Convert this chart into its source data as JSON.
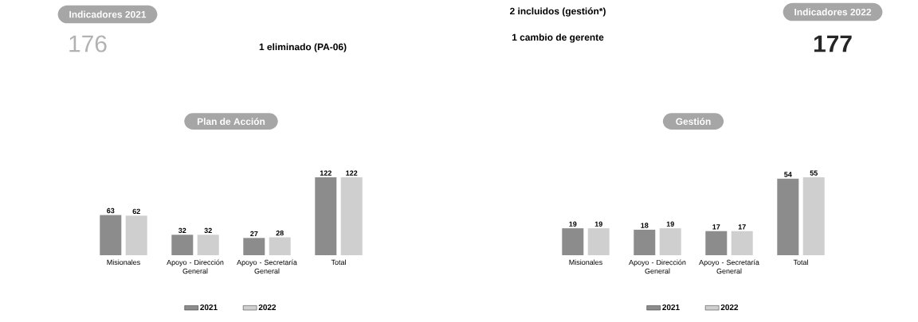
{
  "chart_data": [
    {
      "type": "other",
      "annotations": [
        "Indicadores 2021",
        "176",
        "1 eliminado (PA-06)",
        "2 incluidos (gestión*)",
        "1 cambio de gerente",
        "Indicadores 2022",
        "177"
      ]
    },
    {
      "type": "bar",
      "title": "Plan de Acción",
      "categories": [
        "Misionales",
        "Apoyo - Dirección General",
        "Apoyo - Secretaría General",
        "Total"
      ],
      "series": [
        {
          "name": "2021",
          "color": "#8c8c8c",
          "values": [
            63,
            32,
            27,
            122
          ]
        },
        {
          "name": "2022",
          "color": "#cfcfcf",
          "values": [
            62,
            32,
            28,
            122
          ]
        }
      ],
      "data_labels": true,
      "legend": "bottom"
    },
    {
      "type": "bar",
      "title": "Gestión",
      "categories": [
        "Misionales",
        "Apoyo - Dirección General",
        "Apoyo - Secretaría General",
        "Total"
      ],
      "series": [
        {
          "name": "2021",
          "color": "#8c8c8c",
          "values": [
            19,
            18,
            17,
            54
          ]
        },
        {
          "name": "2022",
          "color": "#cfcfcf",
          "values": [
            19,
            19,
            17,
            55
          ]
        }
      ],
      "data_labels": true,
      "legend": "bottom"
    }
  ]
}
